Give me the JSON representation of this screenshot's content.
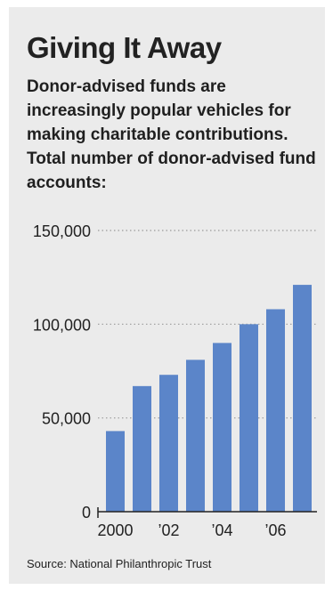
{
  "header": {
    "title": "Giving It Away",
    "subtitle": "Donor-advised funds are increasingly popular vehicles for making charitable contributions. Total number of donor-advised fund accounts:"
  },
  "footer": {
    "source": "Source: National Philanthropic Trust"
  },
  "chart_data": {
    "type": "bar",
    "categories": [
      "2000",
      "2001",
      "2002",
      "2003",
      "2004",
      "2005",
      "2006",
      "2007"
    ],
    "x_tick_labels": [
      "2000",
      "",
      "’02",
      "",
      "’04",
      "",
      "’06",
      ""
    ],
    "values": [
      43000,
      67000,
      73000,
      81000,
      90000,
      100000,
      108000,
      121000
    ],
    "ylim": [
      0,
      150000
    ],
    "yticks": [
      {
        "value": 0,
        "label": "0"
      },
      {
        "value": 50000,
        "label": "50,000"
      },
      {
        "value": 100000,
        "label": "100,000"
      },
      {
        "value": 150000,
        "label": "150,000"
      }
    ],
    "grid": "dotted horizontal",
    "colors": {
      "bar": "#5b85c9",
      "gridline": "#9a9a9a",
      "axis": "#222222",
      "background": "#ebebeb"
    }
  }
}
